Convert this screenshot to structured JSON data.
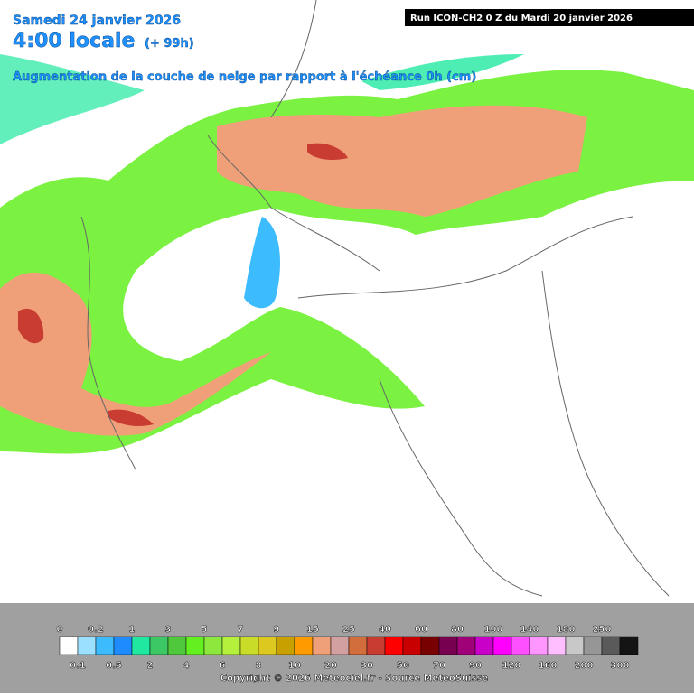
{
  "header": {
    "date": "Samedi 24 janvier 2026",
    "time": "4:00 locale",
    "lead": "(+ 99h)",
    "subtitle": "Augmentation de la couche de neige par rapport à l'échéance 0h (cm)",
    "run": "Run ICON-CH2 0 Z du Mardi 20 janvier 2026"
  },
  "colorbar": {
    "labels": [
      "0",
      "0.1",
      "0.2",
      "0.5",
      "1",
      "2",
      "3",
      "4",
      "5",
      "6",
      "7",
      "8",
      "9",
      "10",
      "15",
      "20",
      "25",
      "30",
      "40",
      "50",
      "60",
      "70",
      "80",
      "90",
      "100",
      "120",
      "140",
      "160",
      "180",
      "200",
      "250",
      "300"
    ],
    "colors": [
      "#ffffff",
      "#9be1ff",
      "#3cbcff",
      "#1e8cff",
      "#20e8a0",
      "#3cc864",
      "#50c83c",
      "#64f020",
      "#8ce83c",
      "#b4f03c",
      "#c8dc28",
      "#dcc81e",
      "#c8a000",
      "#ff9a00",
      "#f0a078",
      "#d2a0a0",
      "#d26e3c",
      "#c83c32",
      "#ff0000",
      "#c80000",
      "#780000",
      "#780050",
      "#a00078",
      "#c800c8",
      "#ff00ff",
      "#ff50ff",
      "#ff96ff",
      "#ffbeff",
      "#c8c8c8",
      "#969696",
      "#5a5a5a",
      "#141414"
    ]
  },
  "footer": {
    "copyright": "Copyright © 2026 Meteociel.fr - Source MeteoSuisse"
  }
}
